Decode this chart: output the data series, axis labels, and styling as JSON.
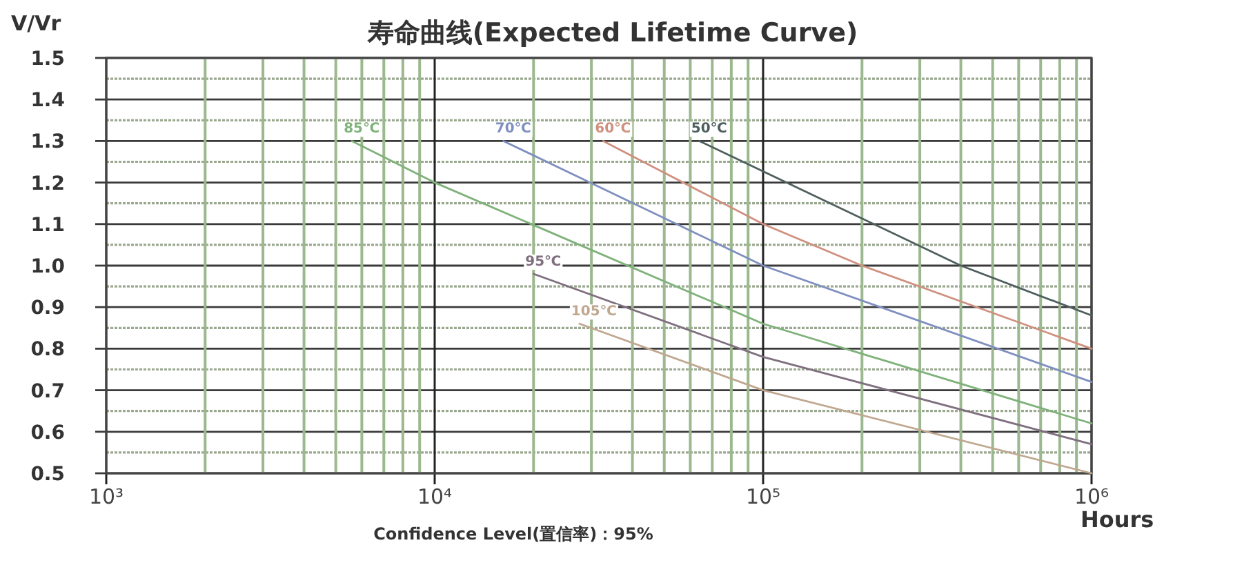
{
  "chart_data": {
    "type": "line",
    "title": "寿命曲线(Expected Lifetime Curve)",
    "xlabel": "Hours",
    "ylabel": "V/Vr",
    "annotations": [
      "Confidence Level(置信率)：95%"
    ],
    "log": "x",
    "grid": true,
    "xlim": [
      1000,
      1000000
    ],
    "ylim": [
      0.5,
      1.5
    ],
    "xticks": [
      {
        "value": 1000,
        "label": "10³"
      },
      {
        "value": 2000,
        "label": null
      },
      {
        "value": 3000,
        "label": null
      },
      {
        "value": 4000,
        "label": null
      },
      {
        "value": 5000,
        "label": null
      },
      {
        "value": 6000,
        "label": null
      },
      {
        "value": 7000,
        "label": null
      },
      {
        "value": 8000,
        "label": null
      },
      {
        "value": 9000,
        "label": null
      },
      {
        "value": 10000,
        "label": "10⁴"
      },
      {
        "value": 20000,
        "label": null
      },
      {
        "value": 30000,
        "label": null
      },
      {
        "value": 40000,
        "label": null
      },
      {
        "value": 50000,
        "label": null
      },
      {
        "value": 60000,
        "label": null
      },
      {
        "value": 70000,
        "label": null
      },
      {
        "value": 80000,
        "label": null
      },
      {
        "value": 90000,
        "label": null
      },
      {
        "value": 100000,
        "label": "10⁵"
      },
      {
        "value": 200000,
        "label": null
      },
      {
        "value": 300000,
        "label": null
      },
      {
        "value": 400000,
        "label": null
      },
      {
        "value": 500000,
        "label": null
      },
      {
        "value": 600000,
        "label": null
      },
      {
        "value": 700000,
        "label": null
      },
      {
        "value": 800000,
        "label": null
      },
      {
        "value": 900000,
        "label": null
      },
      {
        "value": 1000000,
        "label": "10⁶"
      }
    ],
    "yticks": [
      0.5,
      {
        "value": 0.55,
        "label": null
      },
      0.6,
      {
        "value": 0.65,
        "label": null
      },
      0.7,
      {
        "value": 0.75,
        "label": null
      },
      0.8,
      {
        "value": 0.85,
        "label": null
      },
      0.9,
      {
        "value": 0.95,
        "label": null
      },
      {
        "value": 1,
        "label": "1.0"
      },
      {
        "value": 1.05,
        "label": null
      },
      1.1,
      {
        "value": 1.15,
        "label": null
      },
      1.2,
      {
        "value": 1.25,
        "label": null
      },
      1.3,
      {
        "value": 1.35,
        "label": null
      },
      1.4,
      {
        "value": 1.45,
        "label": null
      },
      1.5
    ],
    "series": [
      {
        "name": "85℃",
        "color": "#7fb27a",
        "x": [
          5600,
          10000,
          100000,
          1000000
        ],
        "values": [
          1.3,
          1.2,
          0.86,
          0.62
        ]
      },
      {
        "name": "70℃",
        "color": "#7f8fbf",
        "x": [
          16200,
          100000,
          1000000
        ],
        "values": [
          1.3,
          1.0,
          0.72
        ]
      },
      {
        "name": "60℃",
        "color": "#d0907f",
        "x": [
          32600,
          100000,
          200000,
          1000000
        ],
        "values": [
          1.3,
          1.1,
          1.0,
          0.8
        ]
      },
      {
        "name": "50℃",
        "color": "#4f5f5f",
        "x": [
          64000,
          400000,
          1000000
        ],
        "values": [
          1.3,
          1.0,
          0.88
        ]
      },
      {
        "name": "95℃",
        "color": "#7f6f7f",
        "x": [
          20000,
          100000,
          1000000
        ],
        "values": [
          0.98,
          0.78,
          0.57
        ]
      },
      {
        "name": "105℃",
        "color": "#c0a890",
        "x": [
          27600,
          100000,
          1000000
        ],
        "values": [
          0.86,
          0.7,
          0.5
        ]
      }
    ]
  }
}
